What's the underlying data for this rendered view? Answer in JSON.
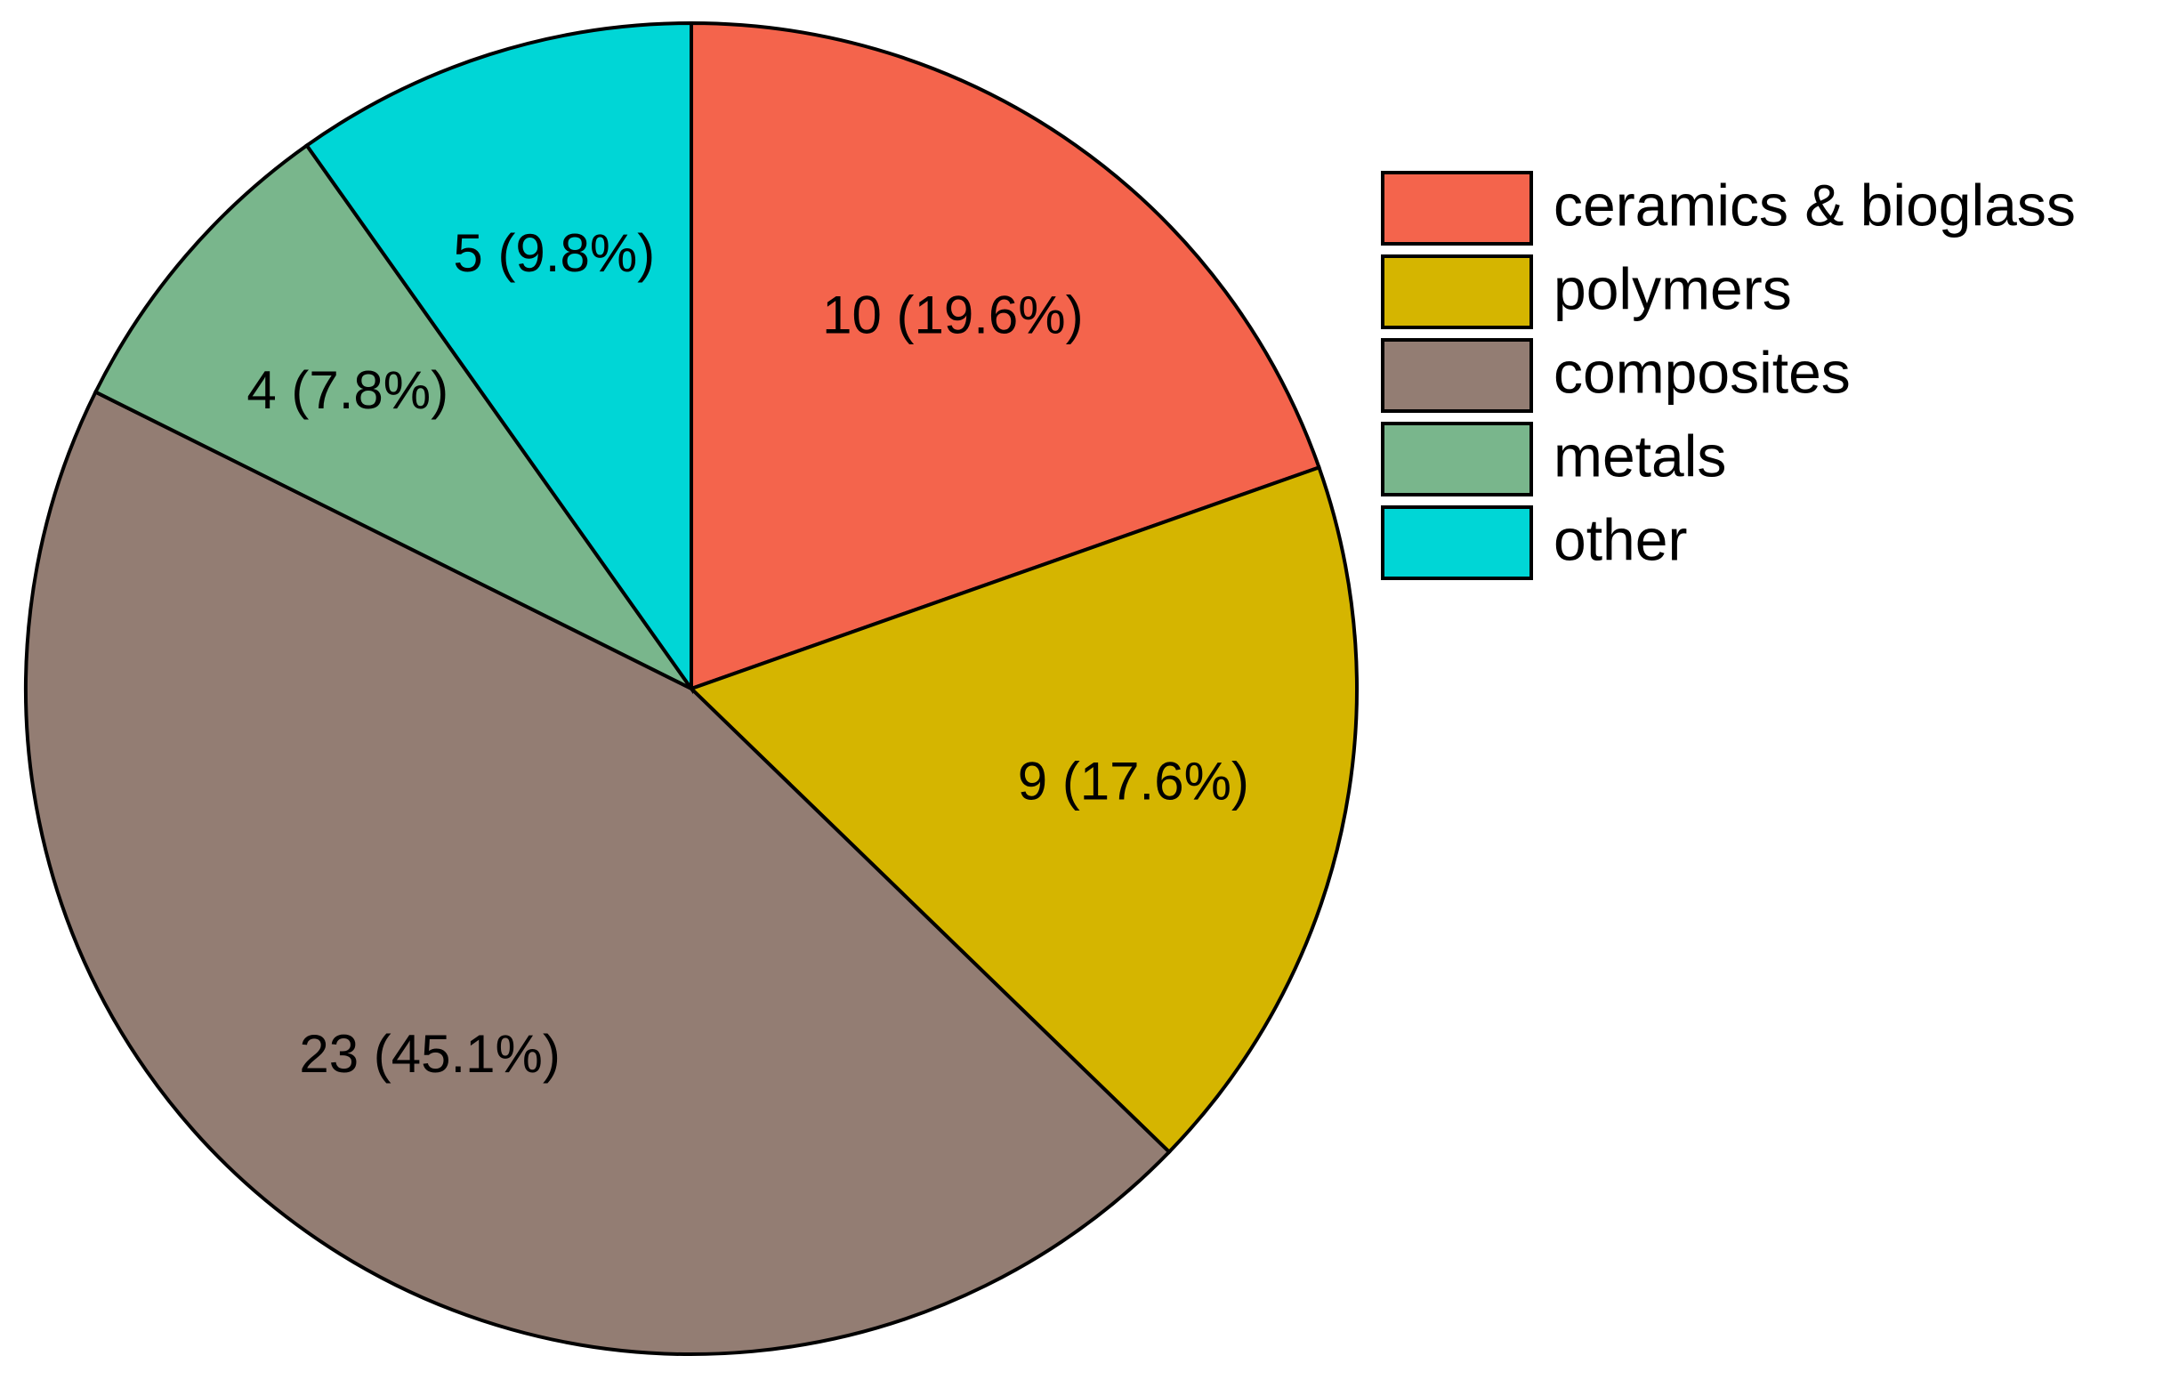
{
  "chart_data": {
    "type": "pie",
    "categories": [
      "ceramics & bioglass",
      "polymers",
      "composites",
      "metals",
      "other"
    ],
    "values": [
      10,
      9,
      23,
      4,
      5
    ],
    "value_labels": [
      "10 (19.6%)",
      "9 (17.6%)",
      "23 (45.1%)",
      "4 (7.8%)",
      "5 (9.8%)"
    ],
    "colors": [
      "#f4644c",
      "#d5b500",
      "#937d73",
      "#79b68c",
      "#00d6d6"
    ],
    "legend": "right"
  }
}
